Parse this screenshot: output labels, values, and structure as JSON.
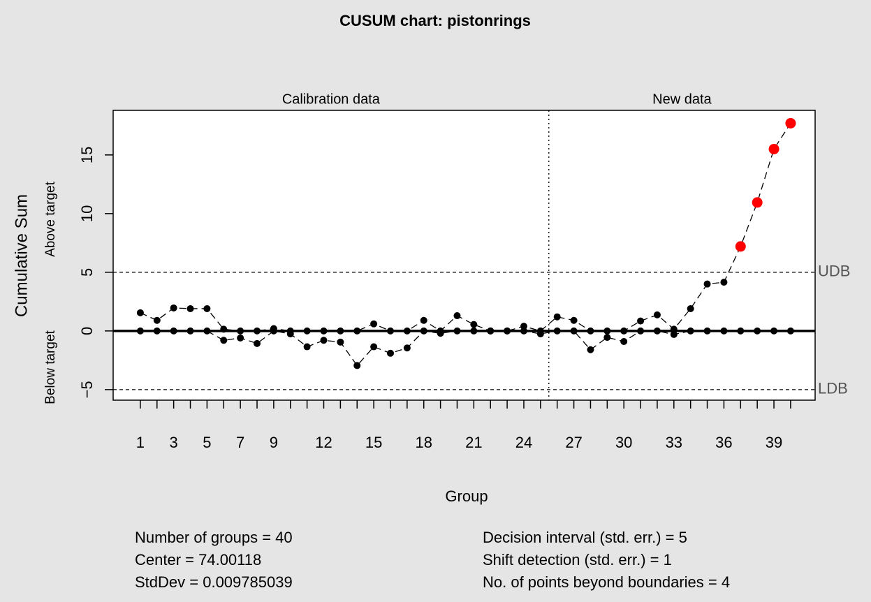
{
  "chart_data": {
    "type": "cusum",
    "title": "CUSUM chart: pistonrings",
    "xlabel": "Group",
    "ylabel": "Cumulative Sum",
    "x": [
      1,
      2,
      3,
      4,
      5,
      6,
      7,
      8,
      9,
      10,
      11,
      12,
      13,
      14,
      15,
      16,
      17,
      18,
      19,
      20,
      21,
      22,
      23,
      24,
      25,
      26,
      27,
      28,
      29,
      30,
      31,
      32,
      33,
      34,
      35,
      36,
      37,
      38,
      39,
      40
    ],
    "series": [
      {
        "name": "Above target",
        "color": "#000000",
        "values": [
          1.55,
          0.9,
          1.96,
          1.9,
          1.9,
          0.15,
          0,
          0,
          0.2,
          0,
          0,
          0,
          0,
          0,
          0.6,
          0,
          0,
          0.9,
          0,
          1.3,
          0.55,
          0,
          0,
          0.4,
          0,
          1.2,
          0.9,
          0,
          0,
          0,
          0.85,
          1.37,
          0.15,
          1.9,
          4.0,
          4.15,
          7.2,
          10.95,
          15.5,
          17.7
        ]
      },
      {
        "name": "Below target",
        "color": "#000000",
        "values": [
          0,
          0,
          0,
          0,
          0,
          -0.8,
          -0.6,
          -1.07,
          0,
          -0.25,
          -1.35,
          -0.8,
          -0.95,
          -2.95,
          -1.35,
          -1.9,
          -1.45,
          0,
          -0.2,
          0,
          0,
          0,
          0,
          0,
          -0.25,
          0,
          0,
          -1.6,
          -0.55,
          -0.9,
          0,
          0,
          -0.3,
          0,
          0,
          0,
          0,
          0,
          0,
          0
        ]
      }
    ],
    "violation_color": "#ff0000",
    "limits": [
      {
        "value": 5,
        "label": "UDB"
      },
      {
        "value": -5,
        "label": "LDB"
      }
    ],
    "split_at": 25.5,
    "sections": [
      "Calibration data",
      "New data"
    ],
    "xlim": [
      -0.63,
      41.47
    ],
    "ylim": [
      -5.9,
      18.8
    ],
    "xticks": [
      1,
      3,
      5,
      7,
      9,
      12,
      15,
      18,
      21,
      24,
      27,
      30,
      33,
      36,
      39
    ],
    "yticks": [
      {
        "value": -5,
        "label": "−5"
      },
      0,
      5,
      10,
      15
    ],
    "notes": [
      "Number of groups = 40",
      "Center = 74.00118",
      "StdDev = 0.009785039",
      "Decision interval (std. err.) = 5",
      "Shift detection (std. err.) = 1",
      "No. of points beyond boundaries = 4"
    ]
  }
}
